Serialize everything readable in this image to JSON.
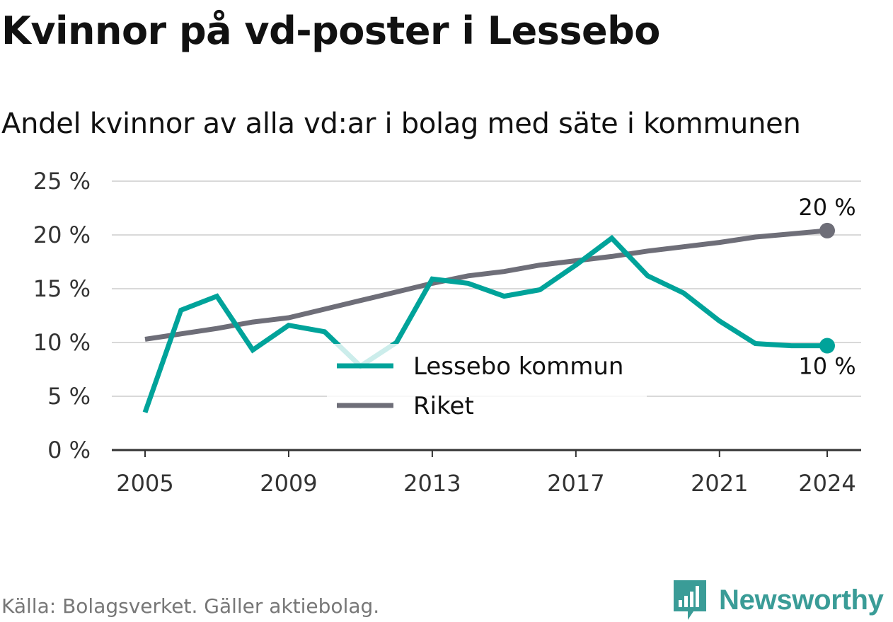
{
  "title": "Kvinnor på vd-poster i Lessebo",
  "subtitle": "Andel kvinnor av alla vd:ar i bolag med säte i kommunen",
  "source": "Källa: Bolagsverket. Gäller aktiebolag.",
  "brand": {
    "name": "Newsworthy",
    "icon": "bar-chart-logo-icon"
  },
  "colors": {
    "lessebo": "#00a39a",
    "riket": "#6e6e78",
    "grid": "#d9d9d9",
    "axis": "#333333"
  },
  "chart_data": {
    "type": "line",
    "x": [
      2005,
      2006,
      2007,
      2008,
      2009,
      2010,
      2011,
      2012,
      2013,
      2014,
      2015,
      2016,
      2017,
      2018,
      2019,
      2020,
      2021,
      2022,
      2023,
      2024
    ],
    "x_ticks": [
      "2005",
      "2009",
      "2013",
      "2017",
      "2021",
      "2024"
    ],
    "y_ticks": [
      "0 %",
      "5 %",
      "10 %",
      "15 %",
      "20 %",
      "25 %"
    ],
    "ylim": [
      0,
      25
    ],
    "grid": true,
    "legend_position": "bottom-center",
    "series": [
      {
        "name": "Lessebo kommun",
        "color": "#00a39a",
        "values": [
          3.5,
          13.0,
          14.3,
          9.3,
          11.6,
          11.0,
          7.8,
          10.0,
          15.9,
          15.5,
          14.3,
          14.9,
          17.2,
          19.7,
          16.2,
          14.6,
          12.0,
          9.9,
          9.7,
          9.7
        ],
        "end_label": "10 %"
      },
      {
        "name": "Riket",
        "color": "#6e6e78",
        "values": [
          10.3,
          10.8,
          11.3,
          11.9,
          12.3,
          13.1,
          13.9,
          14.7,
          15.5,
          16.2,
          16.6,
          17.2,
          17.6,
          18.0,
          18.5,
          18.9,
          19.3,
          19.8,
          20.1,
          20.4
        ],
        "end_label": "20 %"
      }
    ]
  }
}
